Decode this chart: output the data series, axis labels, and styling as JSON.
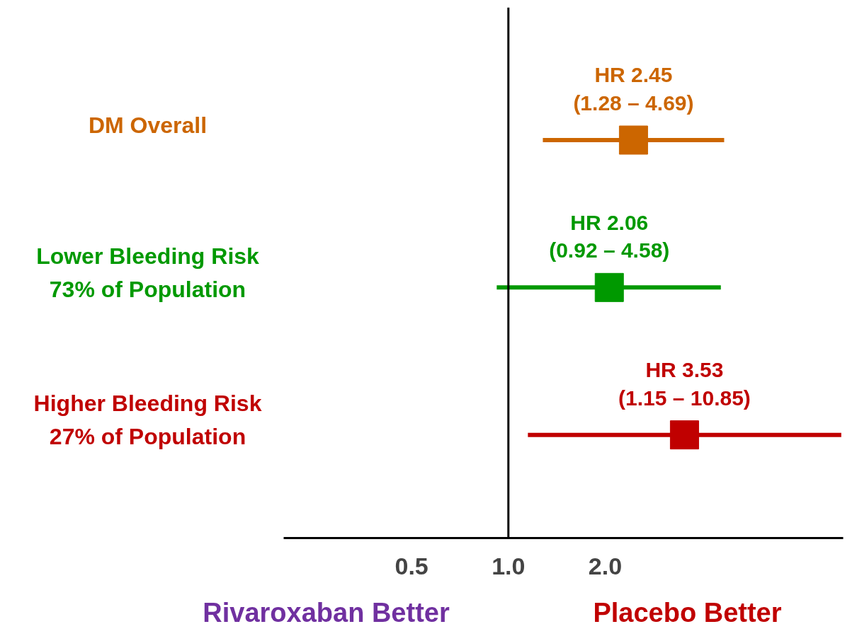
{
  "chart_data": {
    "type": "scatter",
    "orientation": "horizontal",
    "categories": [
      "DM Overall",
      "Lower Bleeding Risk\n73% of Population",
      "Higher Bleeding Risk\n27% of Population"
    ],
    "values": [
      2.45,
      2.06,
      3.53
    ],
    "errors": [
      [
        1.28,
        4.69
      ],
      [
        0.92,
        4.58
      ],
      [
        1.15,
        10.85
      ]
    ],
    "colors": [
      "#cc6600",
      "#009900",
      "#c00000"
    ],
    "value_labels": [
      "HR 2.45\n(1.28 – 4.69)",
      "HR 2.06\n(0.92 – 4.58)",
      "HR 3.53\n(1.15 – 10.85)"
    ],
    "log": "x",
    "xlim": [
      0.2,
      11
    ],
    "xticks": [
      0.5,
      {
        "value": 1,
        "label": "1.0"
      },
      {
        "value": 2,
        "label": "2.0"
      }
    ],
    "marker": "square",
    "grid": false,
    "ref_lines": [
      {
        "axis": "x",
        "value": 1,
        "color": "#000000"
      }
    ],
    "annotations": [
      "Rivaroxaban Better",
      "Placebo Better"
    ]
  }
}
